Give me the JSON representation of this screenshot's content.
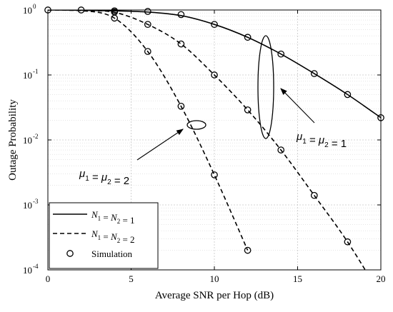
{
  "chart_data": {
    "type": "line",
    "xlabel": "Average SNR per Hop (dB)",
    "ylabel": "Outage Probability",
    "xlim": [
      0,
      20
    ],
    "ylim": [
      0.0001,
      1
    ],
    "yscale": "log",
    "grid": true,
    "x_ticks": [
      "0",
      "5",
      "10",
      "15",
      "20"
    ],
    "y_ticks": [
      {
        "base": "10",
        "exp": "0"
      },
      {
        "base": "10",
        "exp": "-1"
      },
      {
        "base": "10",
        "exp": "-2"
      },
      {
        "base": "10",
        "exp": "-3"
      },
      {
        "base": "10",
        "exp": "-4"
      }
    ],
    "legend": {
      "placement": "bottom-left",
      "entries": [
        {
          "label": "N1 = N2 = 1",
          "style": "solid"
        },
        {
          "label": "N1 = N2 = 2",
          "style": "dashed"
        },
        {
          "label": "Simulation",
          "style": "marker"
        }
      ]
    },
    "series": [
      {
        "style": "solid",
        "x": [
          0,
          2,
          4,
          6,
          8,
          10,
          12,
          14,
          16,
          18,
          20
        ],
        "y": [
          1.0,
          0.99,
          0.97,
          0.93,
          0.82,
          0.6,
          0.38,
          0.21,
          0.105,
          0.05,
          0.022
        ]
      },
      {
        "style": "dashed",
        "x": [
          0,
          2,
          4,
          6,
          8,
          10,
          12,
          14,
          16,
          18,
          20
        ],
        "y": [
          1.0,
          0.98,
          0.92,
          0.6,
          0.3,
          0.1,
          0.029,
          0.007,
          0.0014,
          0.00027,
          4e-05
        ]
      },
      {
        "style": "dashed",
        "x": [
          0,
          2,
          4,
          6,
          8,
          10,
          12
        ],
        "y": [
          1.0,
          0.98,
          0.75,
          0.23,
          0.033,
          0.0029,
          0.0002
        ]
      },
      {
        "style": "dashed",
        "x": [
          0,
          2,
          4,
          6,
          8,
          10,
          12,
          14,
          16,
          18
        ],
        "y": [
          1.0,
          0.99,
          0.97,
          0.93,
          0.82,
          0.6,
          0.38,
          0.21,
          0.105,
          0.05
        ]
      }
    ],
    "simulation_points": [
      {
        "x": 0,
        "y": 1.0
      },
      {
        "x": 2,
        "y": 1.0
      },
      {
        "x": 4,
        "y": 0.97
      },
      {
        "x": 6,
        "y": 0.95
      },
      {
        "x": 8,
        "y": 0.85
      },
      {
        "x": 10,
        "y": 0.6
      },
      {
        "x": 12,
        "y": 0.38
      },
      {
        "x": 14,
        "y": 0.21
      },
      {
        "x": 16,
        "y": 0.105
      },
      {
        "x": 18,
        "y": 0.05
      },
      {
        "x": 20,
        "y": 0.022
      },
      {
        "x": 4,
        "y": 0.93
      },
      {
        "x": 6,
        "y": 0.6
      },
      {
        "x": 8,
        "y": 0.3
      },
      {
        "x": 10,
        "y": 0.1
      },
      {
        "x": 12,
        "y": 0.029
      },
      {
        "x": 14,
        "y": 0.007
      },
      {
        "x": 16,
        "y": 0.0014
      },
      {
        "x": 18,
        "y": 0.00027
      },
      {
        "x": 4,
        "y": 0.75
      },
      {
        "x": 6,
        "y": 0.23
      },
      {
        "x": 8,
        "y": 0.033
      },
      {
        "x": 10,
        "y": 0.0029
      },
      {
        "x": 12,
        "y": 0.0002
      }
    ],
    "annotations": [
      {
        "text_main": "μ",
        "sub1": "1",
        "eq": "= μ",
        "sub2": "2",
        "value": "= 1"
      },
      {
        "text_main": "μ",
        "sub1": "1",
        "eq": "= μ",
        "sub2": "2",
        "value": "= 2"
      }
    ]
  }
}
